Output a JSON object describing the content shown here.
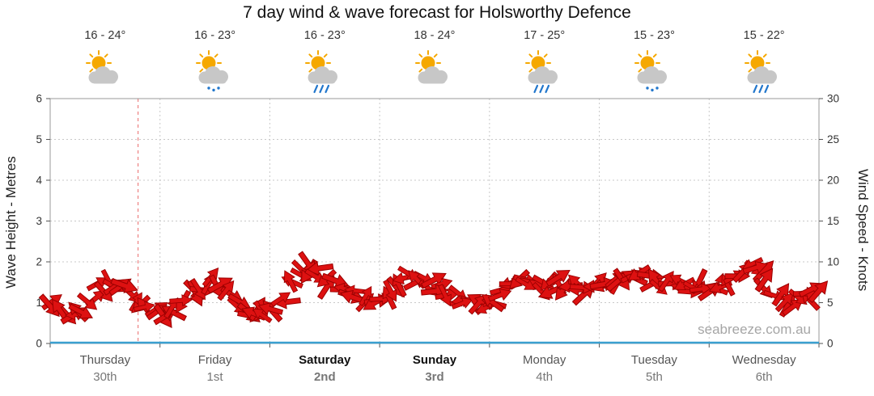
{
  "watermark": "seabreeze.com.au",
  "days": [
    {
      "name": "Thursday",
      "date": "30th",
      "temp": "16 - 24°",
      "icon": "partly-cloudy",
      "weekend": false
    },
    {
      "name": "Friday",
      "date": "1st",
      "temp": "16 - 23°",
      "icon": "partly-cloudy-drizzle",
      "weekend": false
    },
    {
      "name": "Saturday",
      "date": "2nd",
      "temp": "16 - 23°",
      "icon": "partly-cloudy-rain",
      "weekend": true
    },
    {
      "name": "Sunday",
      "date": "3rd",
      "temp": "18 - 24°",
      "icon": "partly-cloudy",
      "weekend": true
    },
    {
      "name": "Monday",
      "date": "4th",
      "temp": "17 - 25°",
      "icon": "partly-cloudy-rain",
      "weekend": false
    },
    {
      "name": "Tuesday",
      "date": "5th",
      "temp": "15 - 23°",
      "icon": "partly-cloudy-drizzle",
      "weekend": false
    },
    {
      "name": "Wednesday",
      "date": "6th",
      "temp": "15 - 22°",
      "icon": "partly-cloudy-rain",
      "weekend": false
    }
  ],
  "colors": {
    "arrow": "#dd1111",
    "arrow_outline": "#990000",
    "now_line": "#ee8888",
    "baseline": "#3aa0d0",
    "grid": "#c8c8c8",
    "frame": "#999999",
    "tick": "#555555",
    "axis_text": "#333333",
    "sun": "#f5a800",
    "cloud": "#c7c7c7",
    "rain": "#2277cc"
  },
  "chart_data": {
    "type": "scatter",
    "title": "7 day wind & wave forecast for Holsworthy Defence",
    "x_categories": [
      "Thursday 30th",
      "Friday 1st",
      "Saturday 2nd",
      "Sunday 3rd",
      "Monday 4th",
      "Tuesday 5th",
      "Wednesday 6th"
    ],
    "y_left": {
      "label": "Wave Height - Metres",
      "range": [
        0,
        6
      ],
      "step": 1
    },
    "y_right": {
      "label": "Wind Speed - Knots",
      "range": [
        0,
        30
      ],
      "step": 5
    },
    "grid": true,
    "legend": "none",
    "now_marker_day_fraction": 0.8,
    "series": [
      {
        "name": "Wind speed",
        "unit": "knots",
        "points_per_day": 12,
        "values": [
          4.5,
          3.5,
          3,
          4,
          5.5,
          7,
          7.5,
          7,
          6.5,
          5.5,
          4.5,
          4,
          4,
          4.5,
          5.5,
          6.5,
          7,
          7.5,
          7,
          6,
          5,
          4,
          3.5,
          4,
          4.5,
          5.5,
          7,
          8.5,
          9.5,
          8.5,
          7.5,
          7,
          6.5,
          6,
          5.5,
          5,
          5.5,
          6.5,
          7.5,
          8,
          8,
          7.5,
          7,
          6.5,
          5.5,
          5,
          4.5,
          5,
          5.5,
          6.5,
          7.5,
          8,
          7.5,
          7,
          7,
          7.5,
          7,
          7,
          6.5,
          7,
          7,
          7.5,
          7.5,
          8,
          8.5,
          8,
          7.5,
          7,
          7,
          7,
          7,
          7,
          7,
          7.5,
          8,
          8.5,
          9.5,
          8.5,
          7.5,
          6.5,
          5.5,
          5,
          6,
          6.5
        ]
      }
    ]
  }
}
